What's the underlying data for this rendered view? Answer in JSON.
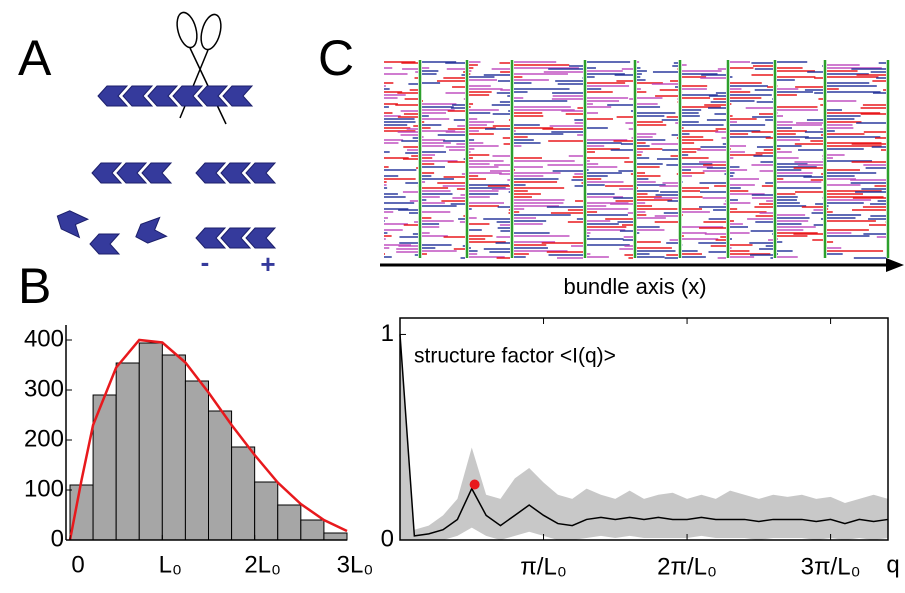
{
  "labels": {
    "a": "A",
    "b": "B",
    "c": "C"
  },
  "diagram": {
    "minus": "-",
    "plus": "+"
  },
  "stripes": {
    "xlabel": "bundle axis (x)"
  },
  "chart_data": [
    {
      "type": "histogram",
      "bins": [
        0,
        0.25,
        0.5,
        0.75,
        1,
        1.25,
        1.5,
        1.75,
        2,
        2.25,
        2.5,
        2.75,
        3
      ],
      "counts": [
        110,
        290,
        354,
        394,
        370,
        318,
        258,
        186,
        116,
        70,
        40,
        14
      ],
      "color": "#a6a6a6",
      "xlim": [
        0,
        3
      ],
      "ylim": [
        0,
        430
      ],
      "xticks": [
        0,
        {
          "value": 1,
          "label": "L₀"
        },
        {
          "value": 2,
          "label": "2L₀"
        },
        {
          "value": 3,
          "label": "3L₀"
        }
      ],
      "yticks": [
        0,
        100,
        200,
        300,
        400
      ],
      "fit": {
        "color": "#e8191d",
        "x": [
          0,
          0.125,
          0.25,
          0.5,
          0.75,
          1,
          1.25,
          1.5,
          1.75,
          2,
          2.25,
          2.5,
          2.75,
          3
        ],
        "values": [
          0,
          120,
          230,
          345,
          400,
          395,
          355,
          295,
          230,
          170,
          115,
          72,
          40,
          18
        ]
      }
    },
    {
      "type": "line",
      "annotation": "structure factor <I(q)>",
      "xlabel": "q",
      "xlim": [
        0,
        3.4
      ],
      "ylim": [
        0,
        1.08
      ],
      "xticks": [
        {
          "value": 1,
          "label": "π/L₀"
        },
        {
          "value": 2,
          "label": "2π/L₀"
        },
        {
          "value": 3,
          "label": "3π/L₀"
        }
      ],
      "yticks": [
        0,
        1
      ],
      "x": [
        0,
        0.1,
        0.2,
        0.3,
        0.4,
        0.5,
        0.6,
        0.7,
        0.8,
        0.9,
        1.0,
        1.1,
        1.2,
        1.3,
        1.4,
        1.5,
        1.6,
        1.7,
        1.8,
        1.9,
        2.0,
        2.1,
        2.2,
        2.3,
        2.4,
        2.5,
        2.6,
        2.7,
        2.8,
        2.9,
        3.0,
        3.1,
        3.2,
        3.3,
        3.4
      ],
      "mean": {
        "color": "#000000",
        "values": [
          1.0,
          0.02,
          0.03,
          0.05,
          0.1,
          0.25,
          0.12,
          0.07,
          0.12,
          0.17,
          0.12,
          0.08,
          0.07,
          0.1,
          0.11,
          0.1,
          0.11,
          0.1,
          0.11,
          0.1,
          0.1,
          0.11,
          0.1,
          0.1,
          0.1,
          0.09,
          0.1,
          0.1,
          0.1,
          0.09,
          0.1,
          0.08,
          0.1,
          0.09,
          0.1
        ]
      },
      "band": {
        "color": "#c8c8c8",
        "upper": [
          1.0,
          0.05,
          0.07,
          0.12,
          0.2,
          0.45,
          0.22,
          0.2,
          0.3,
          0.35,
          0.28,
          0.22,
          0.2,
          0.25,
          0.22,
          0.2,
          0.24,
          0.2,
          0.22,
          0.23,
          0.2,
          0.22,
          0.2,
          0.24,
          0.22,
          0.2,
          0.22,
          0.21,
          0.22,
          0.2,
          0.21,
          0.18,
          0.2,
          0.22,
          0.2
        ],
        "lower": [
          0.0,
          0.0,
          0.0,
          0.0,
          0.02,
          0.06,
          0.02,
          0.0,
          0.02,
          0.04,
          0.02,
          0.0,
          0.0,
          0.01,
          0.02,
          0.01,
          0.02,
          0.01,
          0.01,
          0.01,
          0.01,
          0.02,
          0.01,
          0.01,
          0.01,
          0.0,
          0.01,
          0.01,
          0.01,
          0.0,
          0.01,
          0.0,
          0.01,
          0.0,
          0.01
        ]
      },
      "marker": {
        "color": "#e8191d",
        "x": 0.52,
        "y": 0.27
      }
    }
  ]
}
